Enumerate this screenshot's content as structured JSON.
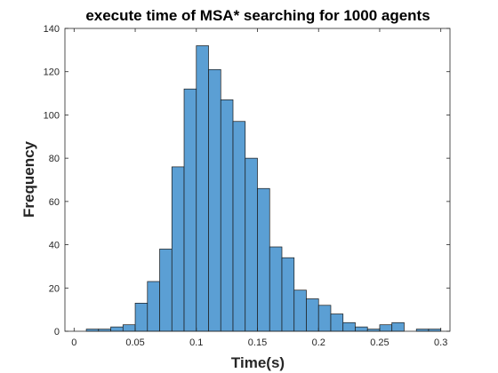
{
  "chart_data": {
    "type": "bar",
    "title": "execute time of MSA* searching for 1000 agents",
    "xlabel": "Time(s)",
    "ylabel": "Frequency",
    "xlim": [
      -0.0075,
      0.3075
    ],
    "ylim": [
      0,
      140
    ],
    "x_ticks": [
      0,
      0.05,
      0.1,
      0.15,
      0.2,
      0.25,
      0.3
    ],
    "x_tick_labels": [
      "0",
      "0.05",
      "0.1",
      "0.15",
      "0.2",
      "0.25",
      "0.3"
    ],
    "y_ticks": [
      0,
      20,
      40,
      60,
      80,
      100,
      120,
      140
    ],
    "y_tick_labels": [
      "0",
      "20",
      "40",
      "60",
      "80",
      "100",
      "120",
      "140"
    ],
    "bin_width": 0.01,
    "bin_starts": [
      0.01,
      0.02,
      0.03,
      0.04,
      0.05,
      0.06,
      0.07,
      0.08,
      0.09,
      0.1,
      0.11,
      0.12,
      0.13,
      0.14,
      0.15,
      0.16,
      0.17,
      0.18,
      0.19,
      0.2,
      0.21,
      0.22,
      0.23,
      0.24,
      0.25,
      0.26,
      0.27,
      0.28,
      0.29
    ],
    "values": [
      1,
      1,
      2,
      3,
      13,
      23,
      38,
      76,
      112,
      132,
      121,
      107,
      97,
      80,
      66,
      39,
      34,
      19,
      15,
      12,
      8,
      4,
      2,
      1,
      3,
      4,
      0,
      1,
      1
    ],
    "bar_color": "#5b9fd4",
    "grid": false,
    "box": true
  }
}
